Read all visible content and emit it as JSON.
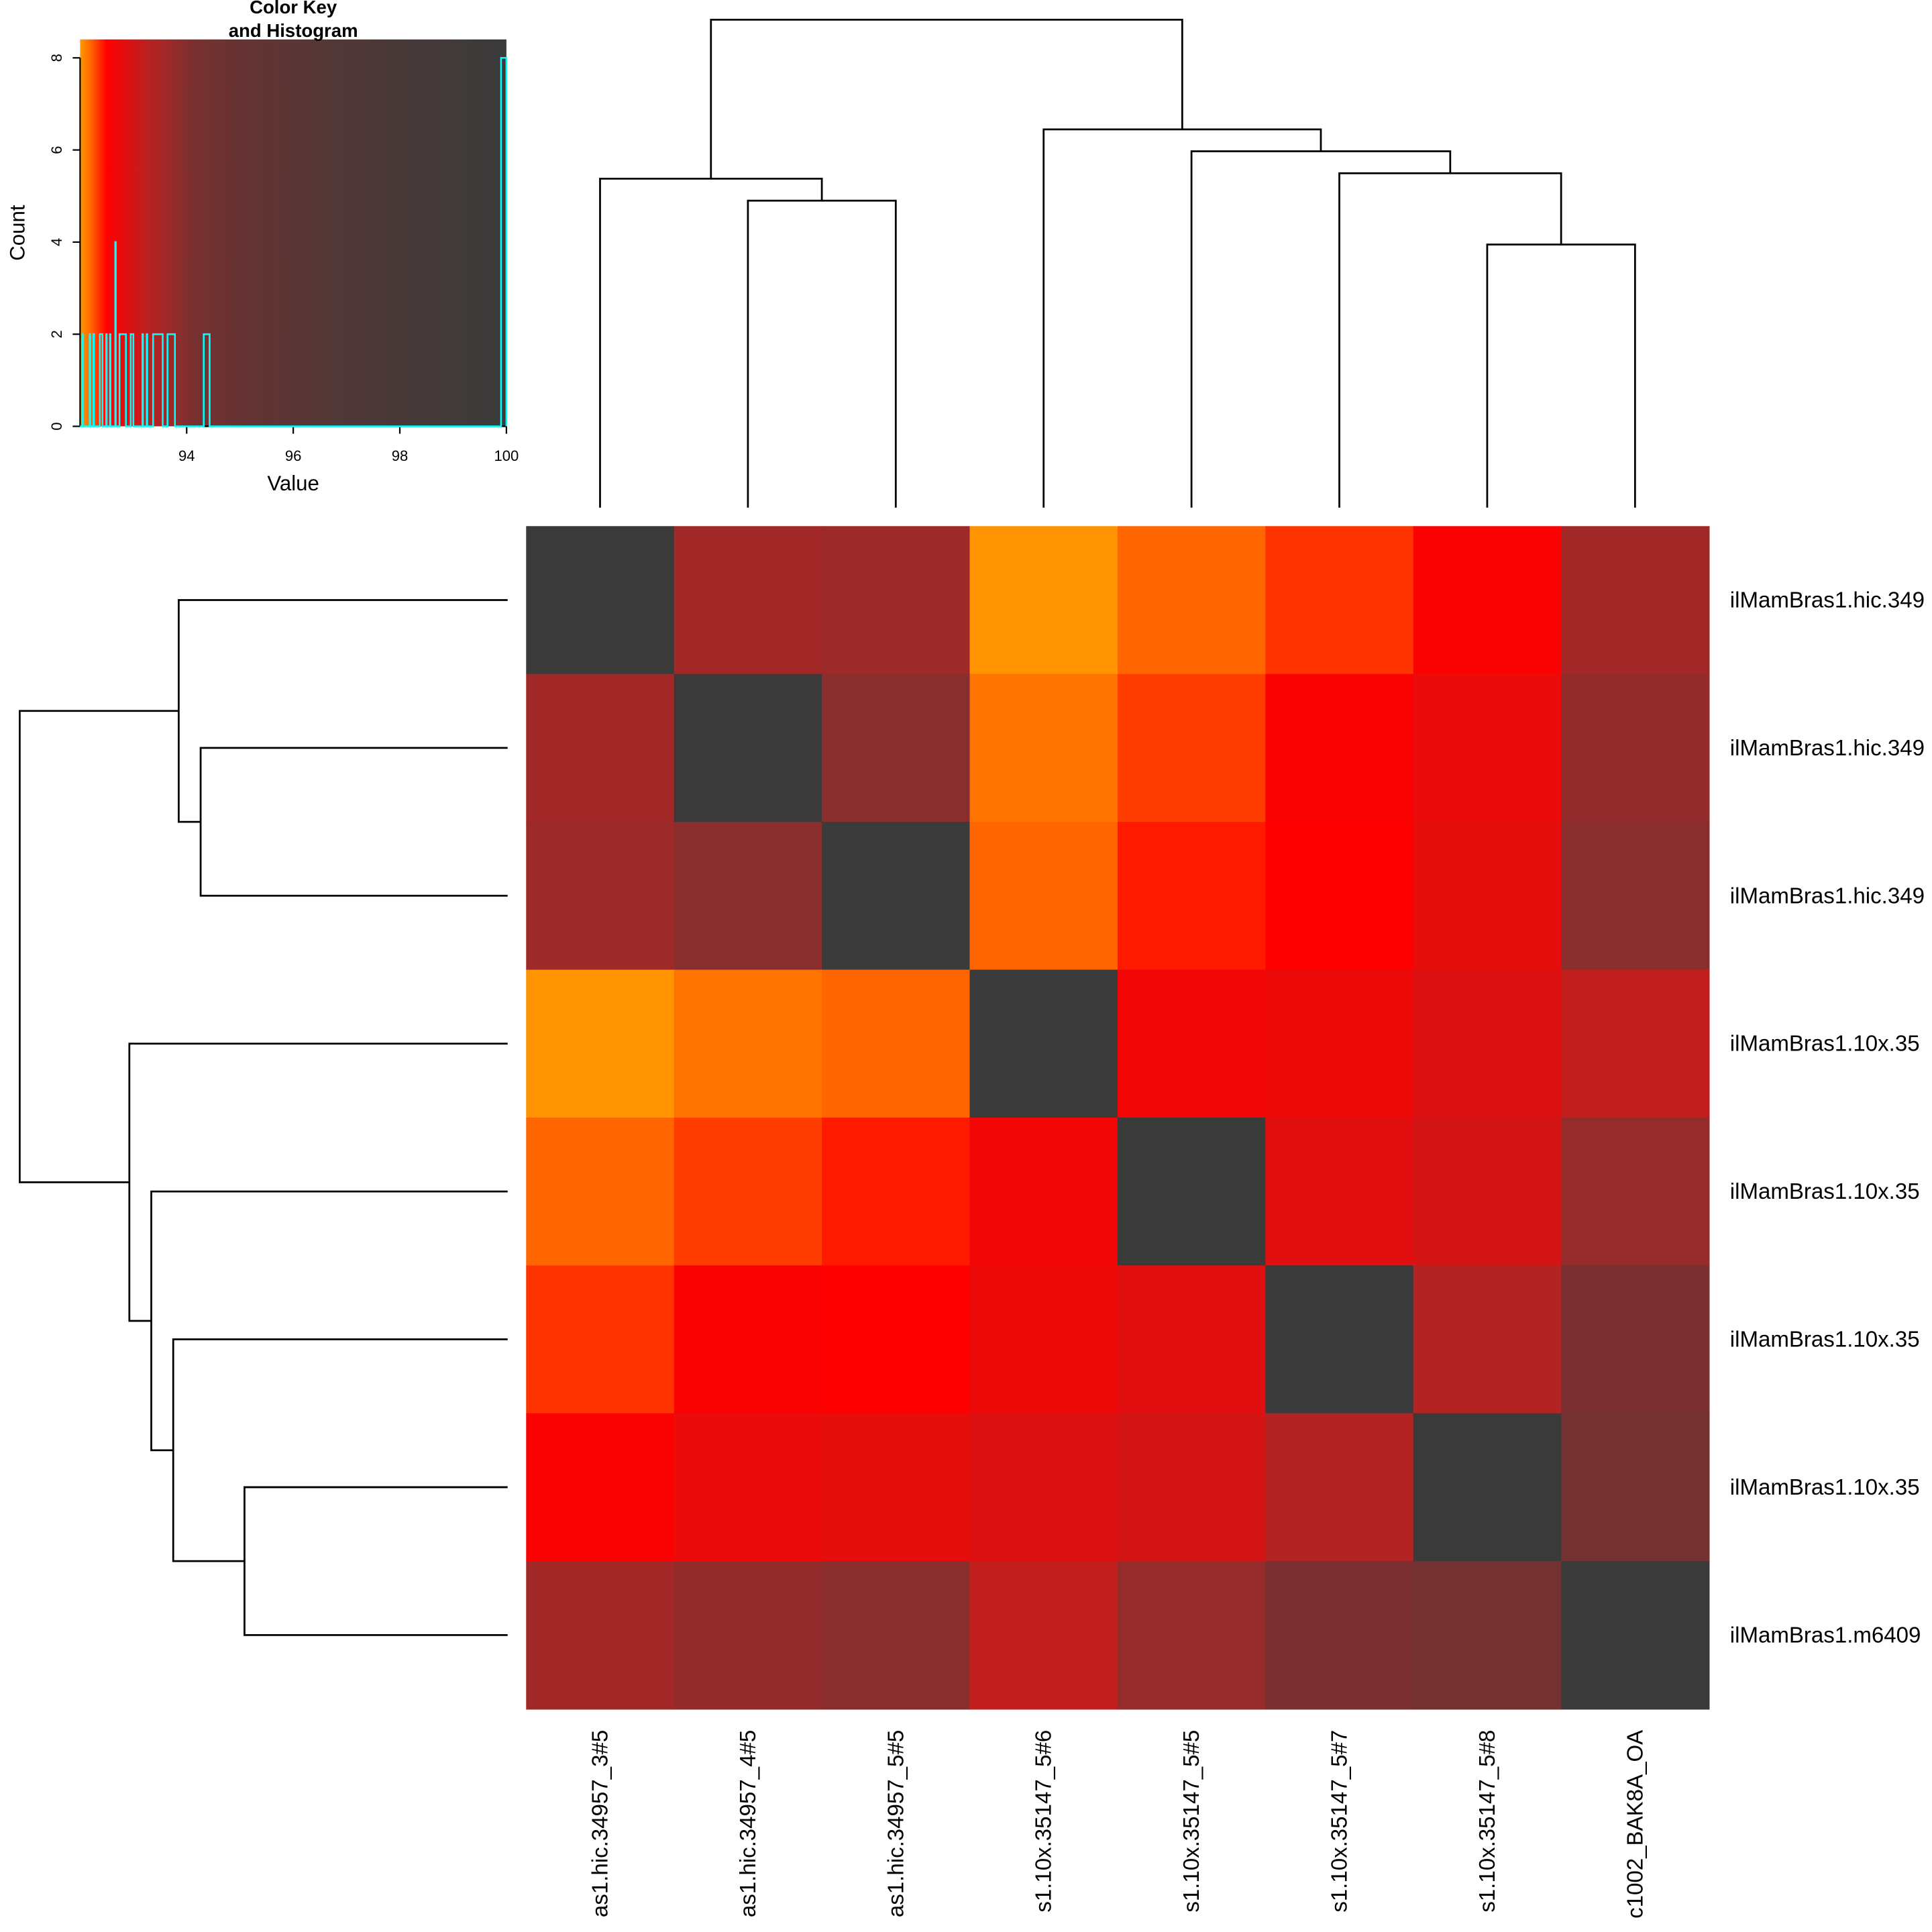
{
  "chart_data": {
    "type": "heatmap",
    "color_key": {
      "title_line1": "Color Key",
      "title_line2": "and Histogram",
      "xlabel": "Value",
      "ylabel": "Count",
      "xlim": [
        92.0,
        100
      ],
      "ylim": [
        0,
        8.4
      ],
      "xticks": [
        "94",
        "96",
        "98",
        "100"
      ],
      "yticks": [
        "0",
        "2",
        "4",
        "6",
        "8"
      ],
      "histogram_color": "#00ffff",
      "histogram_bins": [
        {
          "from": 92.04,
          "to": 92.05,
          "count": 2
        },
        {
          "from": 92.18,
          "to": 92.19,
          "count": 2
        },
        {
          "from": 92.25,
          "to": 92.26,
          "count": 2
        },
        {
          "from": 92.37,
          "to": 92.42,
          "count": 2
        },
        {
          "from": 92.49,
          "to": 92.5,
          "count": 2
        },
        {
          "from": 92.56,
          "to": 92.57,
          "count": 2
        },
        {
          "from": 92.66,
          "to": 92.67,
          "count": 4
        },
        {
          "from": 92.74,
          "to": 92.86,
          "count": 2
        },
        {
          "from": 92.95,
          "to": 93.0,
          "count": 2
        },
        {
          "from": 93.17,
          "to": 93.18,
          "count": 2
        },
        {
          "from": 93.25,
          "to": 93.26,
          "count": 2
        },
        {
          "from": 93.37,
          "to": 93.55,
          "count": 2
        },
        {
          "from": 93.64,
          "to": 93.78,
          "count": 2
        },
        {
          "from": 94.32,
          "to": 94.43,
          "count": 2
        },
        {
          "from": 99.9,
          "to": 100,
          "count": 8
        }
      ]
    },
    "color_scale": [
      [
        92.0,
        "#ff9900"
      ],
      [
        92.2,
        "#ff6600"
      ],
      [
        92.35,
        "#ff3300"
      ],
      [
        92.5,
        "#ff0000"
      ],
      [
        92.9,
        "#dd1111"
      ],
      [
        93.3,
        "#b82222"
      ],
      [
        93.7,
        "#9a2a2a"
      ],
      [
        94.1,
        "#7a3030"
      ],
      [
        95.0,
        "#663333"
      ],
      [
        97.0,
        "#503838"
      ],
      [
        100,
        "#3a3a3a"
      ]
    ],
    "row_labels": [
      "ilMamBras1.hic.349",
      "ilMamBras1.hic.349",
      "ilMamBras1.hic.349",
      "ilMamBras1.10x.35",
      "ilMamBras1.10x.35",
      "ilMamBras1.10x.35",
      "ilMamBras1.10x.35",
      "ilMamBras1.m6409"
    ],
    "col_labels": [
      "as1.hic.34957_3#5",
      "as1.hic.34957_4#5",
      "as1.hic.34957_5#5",
      "s1.10x.35147_5#6",
      "s1.10x.35147_5#5",
      "s1.10x.35147_5#7",
      "s1.10x.35147_5#8",
      "c1002_BAK8A_OA"
    ],
    "values": [
      [
        100,
        93.6,
        93.65,
        92.02,
        92.2,
        92.35,
        92.55,
        93.6
      ],
      [
        93.6,
        100,
        93.9,
        92.15,
        92.32,
        92.55,
        92.75,
        93.8
      ],
      [
        93.65,
        93.9,
        100,
        92.2,
        92.42,
        92.5,
        92.8,
        93.9
      ],
      [
        92.02,
        92.15,
        92.2,
        100,
        92.65,
        92.7,
        92.9,
        93.2
      ],
      [
        92.2,
        92.32,
        92.42,
        92.65,
        100,
        92.85,
        93.0,
        93.75
      ],
      [
        92.35,
        92.55,
        92.5,
        92.7,
        92.85,
        100,
        93.35,
        94.1
      ],
      [
        92.55,
        92.75,
        92.8,
        92.9,
        93.0,
        93.35,
        100,
        94.4
      ],
      [
        93.6,
        93.8,
        93.9,
        93.2,
        93.75,
        94.1,
        94.4,
        100
      ]
    ],
    "dendrogram_merges": [
      {
        "a": 1,
        "b": 2,
        "height": 5.6
      },
      {
        "a": 0,
        "b": "m0",
        "height": 6.0
      },
      {
        "a": 6,
        "b": 7,
        "height": 4.8
      },
      {
        "a": 5,
        "b": "m2",
        "height": 6.1
      },
      {
        "a": 4,
        "b": "m3",
        "height": 6.5
      },
      {
        "a": 3,
        "b": "m4",
        "height": 6.9
      },
      {
        "a": "m1",
        "b": "m5",
        "height": 8.9
      }
    ]
  }
}
